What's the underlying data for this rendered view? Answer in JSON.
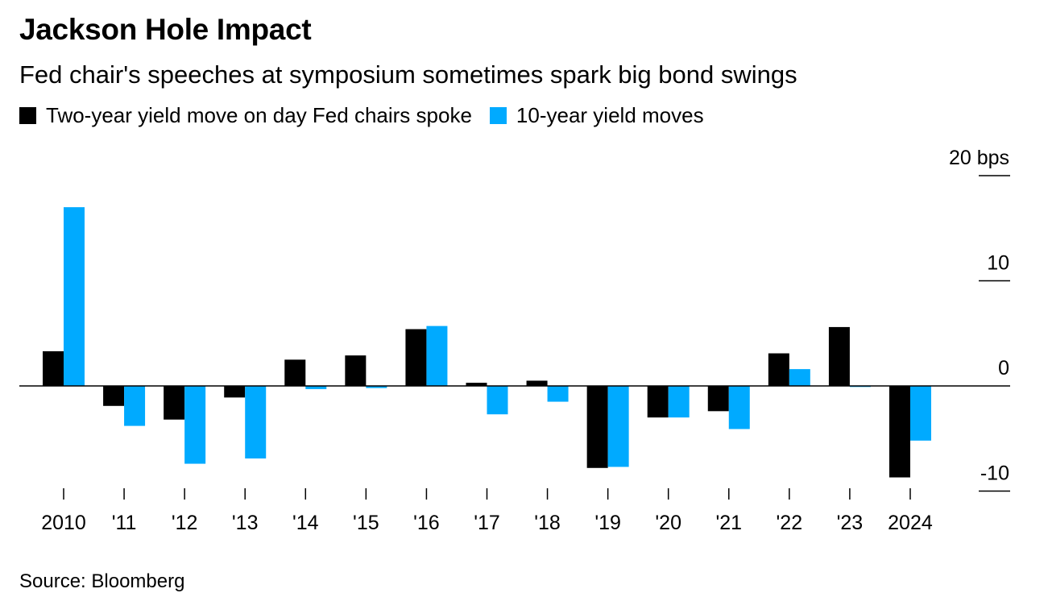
{
  "title": "Jackson Hole Impact",
  "subtitle": "Fed chair's speeches at symposium sometimes spark big bond swings",
  "source": "Source: Bloomberg",
  "colors": {
    "series1": "#000000",
    "series2": "#00aaff",
    "axis": "#000000"
  },
  "chart_data": {
    "type": "bar",
    "title": "Jackson Hole Impact",
    "subtitle": "Fed chair's speeches at symposium sometimes spark big bond swings",
    "categories": [
      "2010",
      "'11",
      "'12",
      "'13",
      "'14",
      "'15",
      "'16",
      "'17",
      "'18",
      "'19",
      "'20",
      "'21",
      "'22",
      "'23",
      "2024"
    ],
    "series": [
      {
        "name": "Two-year yield move on day Fed chairs spoke",
        "color": "#000000",
        "values": [
          3.3,
          -1.9,
          -3.2,
          -1.1,
          2.5,
          2.9,
          5.4,
          0.3,
          0.5,
          -7.8,
          -3.0,
          -2.4,
          3.1,
          5.6,
          -8.7
        ]
      },
      {
        "name": "10-year yield moves",
        "color": "#00aaff",
        "values": [
          17.0,
          -3.8,
          -7.4,
          -6.9,
          -0.3,
          -0.2,
          5.7,
          -2.7,
          -1.5,
          -7.7,
          -3.0,
          -4.1,
          1.6,
          -0.1,
          -5.2
        ]
      }
    ],
    "y_ticks": [
      {
        "value": 20,
        "label": "20 bps"
      },
      {
        "value": 10,
        "label": "10"
      },
      {
        "value": 0,
        "label": "0"
      },
      {
        "value": -10,
        "label": "-10"
      }
    ],
    "ylim": [
      -10,
      20
    ],
    "grid": false,
    "legend_position": "top-left"
  }
}
